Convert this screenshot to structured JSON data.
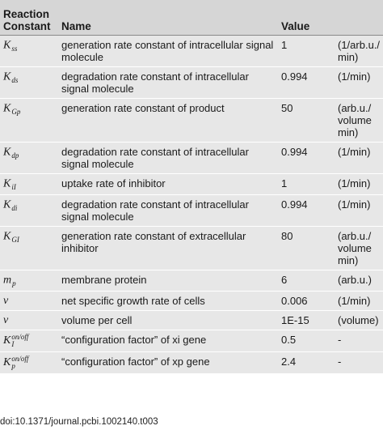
{
  "headers": {
    "constant": "Reaction Constant",
    "name": "Name",
    "value": "Value",
    "unit": ""
  },
  "rows": [
    {
      "symbol": {
        "base": "K",
        "sub": "ss",
        "sup": ""
      },
      "name": "generation rate constant of intracellular signal molecule",
      "value": "1",
      "unit": "(1/arb.u./ min)"
    },
    {
      "symbol": {
        "base": "K",
        "sub": "ds",
        "sup": ""
      },
      "name": "degradation rate constant of intracellular signal molecule",
      "value": "0.994",
      "unit": "(1/min)"
    },
    {
      "symbol": {
        "base": "K",
        "sub": "Gp",
        "sup": ""
      },
      "name": "generation rate constant of product",
      "value": "50",
      "unit": "(arb.u./ volume min)"
    },
    {
      "symbol": {
        "base": "K",
        "sub": "dp",
        "sup": ""
      },
      "name": "degradation rate constant of intracellular signal molecule",
      "value": "0.994",
      "unit": "(1/min)"
    },
    {
      "symbol": {
        "base": "K",
        "sub": "iI",
        "sup": ""
      },
      "name": "uptake rate of inhibitor",
      "value": "1",
      "unit": "(1/min)"
    },
    {
      "symbol": {
        "base": "K",
        "sub": "di",
        "sup": ""
      },
      "name": "degradation rate constant of intracellular signal molecule",
      "value": "0.994",
      "unit": "(1/min)"
    },
    {
      "symbol": {
        "base": "K",
        "sub": "GI",
        "sup": ""
      },
      "name": "generation rate constant of extracellular inhibitor",
      "value": "80",
      "unit": "(arb.u./ volume min)"
    },
    {
      "symbol": {
        "base": "m",
        "sub": "p",
        "sup": ""
      },
      "name": "membrane protein",
      "value": "6",
      "unit": "(arb.u.)"
    },
    {
      "symbol": {
        "base": "ν",
        "sub": "",
        "sup": ""
      },
      "name": "net specific growth rate of cells",
      "value": "0.006",
      "unit": "(1/min)"
    },
    {
      "symbol": {
        "base": "v",
        "sub": "",
        "sup": ""
      },
      "name": "volume per cell",
      "value": "1E-15",
      "unit": "(volume)"
    },
    {
      "symbol": {
        "base": "K",
        "sub": "I",
        "sup": "on/off"
      },
      "name": "“configuration factor” of xi gene",
      "value": "0.5",
      "unit": "-"
    },
    {
      "symbol": {
        "base": "K",
        "sub": "p",
        "sup": "on/off"
      },
      "name": "“configuration factor” of xp gene",
      "value": "2.4",
      "unit": "-"
    }
  ],
  "footer": {
    "doi": "doi:10.1371/journal.pcbi.1002140.t003"
  }
}
